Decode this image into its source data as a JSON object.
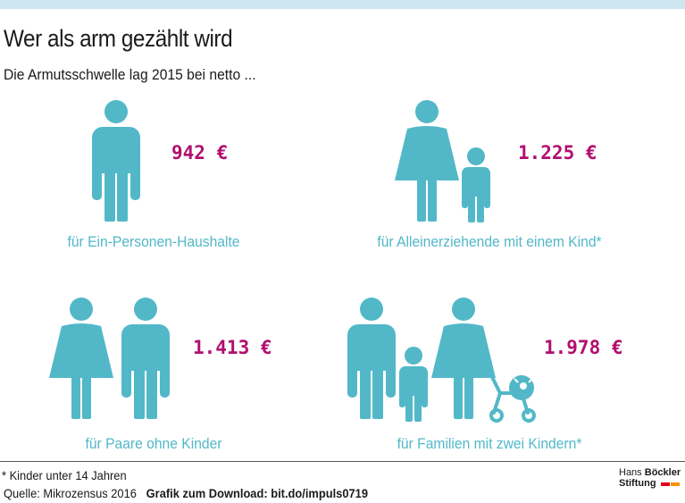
{
  "header": {
    "title": "Wer als arm gezählt wird",
    "subtitle": "Die Armutsschwelle lag 2015 bei netto ..."
  },
  "cards": [
    {
      "price": "942 €",
      "caption": "für Ein-Personen-Haushalte"
    },
    {
      "price": "1.225 €",
      "caption": "für Alleinerziehende mit einem Kind*"
    },
    {
      "price": "1.413 €",
      "caption": "für Paare ohne Kinder"
    },
    {
      "price": "1.978 €",
      "caption": "für Familien mit zwei Kindern*"
    }
  ],
  "footer": {
    "note": "* Kinder unter 14 Jahren",
    "source": "Quelle: Mikrozensus 2016",
    "download": "Grafik zum Download: bit.do/impuls0719",
    "logo_line1_normal": "Hans",
    "logo_line1_bold": "Böckler",
    "logo_line2": "Stiftung"
  },
  "colors": {
    "figure": "#52b8c8",
    "price": "#b10f6f",
    "logo_red": "#e2001a",
    "logo_orange": "#f39200"
  }
}
